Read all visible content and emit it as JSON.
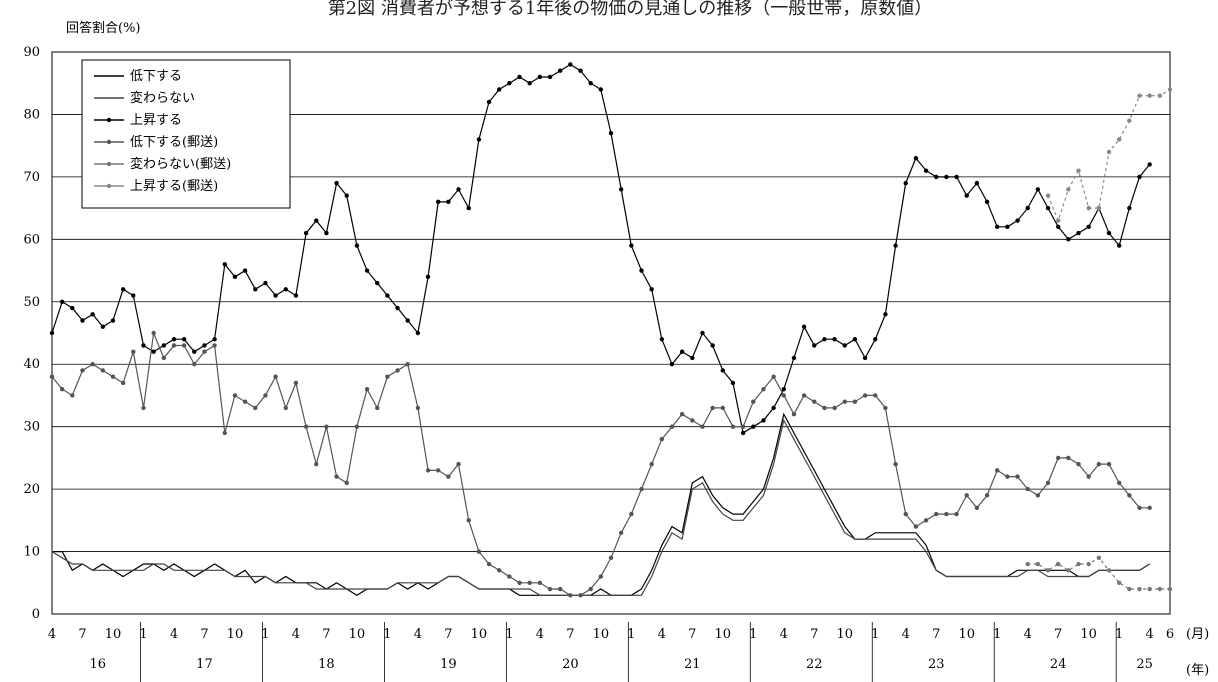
{
  "chart_data": {
    "type": "line",
    "title": "第2図 消費者が予想する1年後の物価の見通しの推移（一般世帯，原数値）",
    "ylabel": "回答割合(%)",
    "ylim": [
      0,
      90
    ],
    "yticks": [
      0,
      10,
      20,
      30,
      40,
      50,
      60,
      70,
      80,
      90
    ],
    "x_unit_month": "(月)",
    "x_unit_year": "(年)",
    "x_month_labels": [
      "4",
      "7",
      "10",
      "1",
      "4",
      "7",
      "10",
      "1",
      "4",
      "7",
      "10",
      "1",
      "4",
      "7",
      "10",
      "1",
      "4",
      "7",
      "10",
      "1",
      "4",
      "7",
      "10",
      "1",
      "4",
      "7",
      "10",
      "1",
      "4",
      "7",
      "10",
      "1",
      "4",
      "7",
      "10",
      "1",
      "4",
      "6"
    ],
    "x_year_labels": [
      "16",
      "17",
      "18",
      "19",
      "20",
      "21",
      "22",
      "23",
      "24",
      "25"
    ],
    "grid": true,
    "legend_position": "top-left",
    "series": [
      {
        "name": "低下する",
        "color": "#000000",
        "marker": "none",
        "x": [
          0,
          1,
          2,
          3,
          4,
          5,
          6,
          7,
          8,
          9,
          10,
          11,
          12,
          13,
          14,
          15,
          16,
          17,
          18,
          19,
          20,
          21,
          22,
          23,
          24,
          25,
          26,
          27,
          28,
          29,
          30,
          31,
          32,
          33,
          34,
          35,
          36,
          37,
          38,
          39,
          40,
          41,
          42,
          43,
          44,
          45,
          46,
          47,
          48,
          49,
          50,
          51,
          52,
          53,
          54,
          55,
          56,
          57,
          58,
          59,
          60,
          61,
          62,
          63,
          64,
          65,
          66,
          67,
          68,
          69,
          70,
          71,
          72,
          73,
          74,
          75,
          76,
          77,
          78,
          79,
          80,
          81,
          82,
          83,
          84,
          85,
          86,
          87,
          88,
          89,
          90,
          91,
          92,
          93,
          94,
          95,
          96,
          97,
          98,
          99,
          100,
          101,
          102,
          103,
          104,
          105,
          106,
          107,
          108
        ],
        "values": [
          10,
          10,
          7,
          8,
          7,
          8,
          7,
          6,
          7,
          8,
          8,
          7,
          8,
          7,
          6,
          7,
          8,
          7,
          6,
          7,
          5,
          6,
          5,
          6,
          5,
          5,
          5,
          4,
          5,
          4,
          3,
          4,
          4,
          4,
          5,
          4,
          5,
          4,
          5,
          6,
          6,
          5,
          4,
          4,
          4,
          4,
          3,
          3,
          3,
          3,
          3,
          3,
          3,
          3,
          4,
          3,
          3,
          3,
          4,
          7,
          11,
          14,
          13,
          21,
          22,
          19,
          17,
          16,
          16,
          18,
          20,
          25,
          32,
          29,
          26,
          23,
          20,
          17,
          14,
          12,
          12,
          13,
          13,
          13,
          13,
          13,
          11,
          7,
          6,
          6,
          6,
          6,
          6,
          6,
          6,
          7,
          7,
          7,
          7,
          7,
          7,
          6,
          6,
          7,
          7,
          7,
          7,
          7,
          8
        ]
      },
      {
        "name": "変わらない",
        "color": "#444444",
        "marker": "none",
        "x": [
          0,
          1,
          2,
          3,
          4,
          5,
          6,
          7,
          8,
          9,
          10,
          11,
          12,
          13,
          14,
          15,
          16,
          17,
          18,
          19,
          20,
          21,
          22,
          23,
          24,
          25,
          26,
          27,
          28,
          29,
          30,
          31,
          32,
          33,
          34,
          35,
          36,
          37,
          38,
          39,
          40,
          41,
          42,
          43,
          44,
          45,
          46,
          47,
          48,
          49,
          50,
          51,
          52,
          53,
          54,
          55,
          56,
          57,
          58,
          59,
          60,
          61,
          62,
          63,
          64,
          65,
          66,
          67,
          68,
          69,
          70,
          71,
          72,
          73,
          74,
          75,
          76,
          77,
          78,
          79,
          80,
          81,
          82,
          83,
          84,
          85,
          86,
          87,
          88,
          89,
          90,
          91,
          92,
          93,
          94,
          95,
          96,
          97,
          98,
          99,
          100,
          101,
          102,
          103,
          104,
          105,
          106,
          107,
          108
        ],
        "values": [
          10,
          9,
          8,
          8,
          7,
          7,
          7,
          7,
          7,
          7,
          8,
          8,
          7,
          7,
          7,
          7,
          7,
          7,
          6,
          6,
          6,
          6,
          5,
          5,
          5,
          5,
          4,
          4,
          4,
          4,
          4,
          4,
          4,
          4,
          5,
          5,
          5,
          5,
          5,
          6,
          6,
          5,
          4,
          4,
          4,
          4,
          4,
          4,
          3,
          3,
          3,
          3,
          3,
          3,
          3,
          3,
          3,
          3,
          3,
          6,
          10,
          13,
          12,
          20,
          21,
          18,
          16,
          15,
          15,
          17,
          19,
          24,
          31,
          28,
          25,
          22,
          19,
          16,
          13,
          12,
          12,
          12,
          12,
          12,
          12,
          12,
          10,
          7,
          6,
          6,
          6,
          6,
          6,
          6,
          6,
          6,
          7,
          7,
          6,
          6,
          6,
          6,
          6,
          7,
          7,
          7,
          7,
          7,
          8
        ]
      },
      {
        "name": "上昇する",
        "color": "#000000",
        "marker": "dot",
        "x": [
          0,
          1,
          2,
          3,
          4,
          5,
          6,
          7,
          8,
          9,
          10,
          11,
          12,
          13,
          14,
          15,
          16,
          17,
          18,
          19,
          20,
          21,
          22,
          23,
          24,
          25,
          26,
          27,
          28,
          29,
          30,
          31,
          32,
          33,
          34,
          35,
          36,
          37,
          38,
          39,
          40,
          41,
          42,
          43,
          44,
          45,
          46,
          47,
          48,
          49,
          50,
          51,
          52,
          53,
          54,
          55,
          56,
          57,
          58,
          59,
          60,
          61,
          62,
          63,
          64,
          65,
          66,
          67,
          68,
          69,
          70,
          71,
          72,
          73,
          74,
          75,
          76,
          77,
          78,
          79,
          80,
          81,
          82,
          83,
          84,
          85,
          86,
          87,
          88,
          89,
          90,
          91,
          92,
          93,
          94,
          95,
          96,
          97,
          98,
          99,
          100,
          101,
          102,
          103,
          104,
          105,
          106,
          107,
          108
        ],
        "values": [
          45,
          50,
          49,
          47,
          48,
          46,
          47,
          52,
          51,
          43,
          42,
          43,
          44,
          44,
          42,
          43,
          44,
          56,
          54,
          55,
          52,
          53,
          51,
          52,
          51,
          61,
          63,
          61,
          69,
          67,
          59,
          55,
          53,
          51,
          49,
          47,
          45,
          54,
          66,
          66,
          68,
          65,
          76,
          82,
          84,
          85,
          86,
          85,
          86,
          86,
          87,
          88,
          87,
          85,
          84,
          77,
          68,
          59,
          55,
          52,
          44,
          40,
          42,
          41,
          45,
          43,
          39,
          37,
          29,
          30,
          31,
          33,
          36,
          41,
          46,
          43,
          44,
          44,
          43,
          44,
          41,
          44,
          48,
          59,
          69,
          73,
          71,
          70,
          70,
          70,
          67,
          69,
          66,
          62,
          62,
          63,
          65,
          68,
          65,
          62,
          60,
          61,
          62,
          65,
          61,
          59,
          65,
          70,
          72
        ]
      },
      {
        "name": "低下する(郵送)",
        "color": "#555555",
        "marker": "dot",
        "x": [
          0,
          1,
          2,
          3,
          4,
          5,
          6,
          7,
          8,
          9,
          10,
          11,
          12,
          13,
          14,
          15,
          16,
          17,
          18,
          19,
          20,
          21,
          22,
          23,
          24,
          25,
          26,
          27,
          28,
          29,
          30,
          31,
          32,
          33,
          34,
          35,
          36,
          37,
          38,
          39,
          40,
          41,
          42,
          43,
          44,
          45,
          46,
          47,
          48,
          49,
          50,
          51,
          52,
          53,
          54,
          55,
          56,
          57,
          58,
          59,
          60,
          61,
          62,
          63,
          64,
          65,
          66,
          67,
          68,
          69,
          70,
          71,
          72,
          73,
          74,
          75,
          76,
          77,
          78,
          79,
          80,
          81,
          82,
          83,
          84,
          85,
          86,
          87,
          88,
          89,
          90,
          91,
          92,
          93,
          94,
          95,
          96,
          97,
          98,
          99,
          100,
          101,
          102,
          103,
          104,
          105,
          106,
          107,
          108
        ],
        "values": [
          38,
          36,
          35,
          39,
          40,
          39,
          38,
          37,
          42,
          33,
          45,
          41,
          43,
          43,
          40,
          42,
          43,
          29,
          35,
          34,
          33,
          35,
          38,
          33,
          37,
          30,
          24,
          30,
          22,
          21,
          30,
          36,
          33,
          38,
          39,
          40,
          33,
          23,
          23,
          22,
          24,
          15,
          10,
          8,
          7,
          6,
          5,
          5,
          5,
          4,
          4,
          3,
          3,
          4,
          6,
          9,
          13,
          16,
          20,
          24,
          28,
          30,
          32,
          31,
          30,
          33,
          33,
          30,
          30,
          34,
          36,
          38,
          35,
          32,
          35,
          34,
          33,
          33,
          34,
          34,
          35,
          35,
          33,
          24,
          16,
          14,
          15,
          16,
          16,
          16,
          19,
          17,
          19,
          23,
          22,
          22,
          20,
          19,
          21,
          25,
          25,
          24,
          22,
          24,
          24,
          21,
          19,
          17,
          17
        ]
      },
      {
        "name": "変わらない(郵送)",
        "color": "#777777",
        "marker": "dot",
        "x": [
          96,
          97,
          98,
          99,
          100,
          101,
          102,
          103,
          104,
          105,
          106,
          107,
          108,
          109,
          110
        ],
        "values": [
          8,
          8,
          7,
          8,
          7,
          8,
          8,
          9,
          7,
          5,
          4,
          4,
          4,
          4,
          4
        ]
      },
      {
        "name": "上昇する(郵送)",
        "color": "#888888",
        "marker": "dot",
        "x": [
          98,
          99,
          100,
          101,
          102,
          103,
          104,
          105,
          106,
          107,
          108,
          109,
          110
        ],
        "values": [
          67,
          63,
          68,
          71,
          65,
          65,
          74,
          76,
          79,
          83,
          83,
          83,
          84
        ]
      }
    ]
  }
}
